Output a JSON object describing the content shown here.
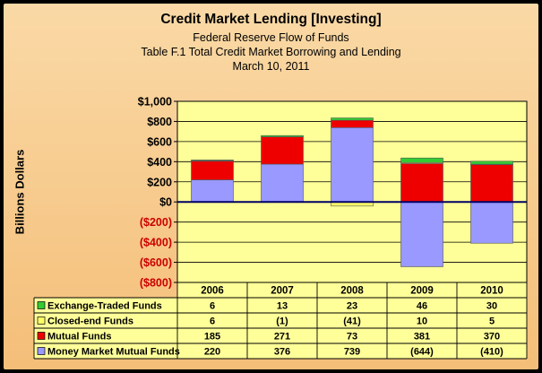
{
  "header": {
    "title": "Credit Market Lending [Investing]",
    "subtitle_1": "Federal Reserve Flow of Funds",
    "subtitle_2": "Table F.1 Total Credit Market Borrowing and Lending",
    "subtitle_3": "March 10, 2011"
  },
  "colors": {
    "plot_background": "#ffff99",
    "exchange_traded": "#33cc33",
    "closed_end": "#ffff66",
    "mutual_funds": "#ee0000",
    "money_market": "#9999ff",
    "negative_label": "#cc0000"
  },
  "chart_data": {
    "type": "bar",
    "stacked": true,
    "title": "Credit Market Lending [Investing]",
    "subtitle": "Federal Reserve Flow of Funds / Table F.1 Total Credit Market Borrowing and Lending / March 10, 2011",
    "xlabel": "",
    "ylabel": "Billions Dollars",
    "ylim": [
      -800,
      1000
    ],
    "y_ticks": [
      1000,
      800,
      600,
      400,
      200,
      0,
      -200,
      -400,
      -600,
      -800
    ],
    "y_tick_labels": [
      "$1,000",
      "$800",
      "$600",
      "$400",
      "$200",
      "$0",
      "($200)",
      "($400)",
      "($600)",
      "($800)"
    ],
    "grid": true,
    "legend": "data table below chart",
    "categories": [
      "2006",
      "2007",
      "2008",
      "2009",
      "2010"
    ],
    "series": [
      {
        "name": "Exchange-Traded Funds",
        "color": "#33cc33",
        "values": [
          6,
          13,
          23,
          46,
          30
        ],
        "labels": [
          "6",
          "13",
          "23",
          "46",
          "30"
        ]
      },
      {
        "name": "Closed-end Funds",
        "color": "#ffff66",
        "values": [
          6,
          -1,
          -41,
          10,
          5
        ],
        "labels": [
          "6",
          "(1)",
          "(41)",
          "10",
          "5"
        ]
      },
      {
        "name": "Mutual Funds",
        "color": "#ee0000",
        "values": [
          185,
          271,
          73,
          381,
          370
        ],
        "labels": [
          "185",
          "271",
          "73",
          "381",
          "370"
        ]
      },
      {
        "name": "Money Market Mutual Funds",
        "color": "#9999ff",
        "values": [
          220,
          376,
          739,
          -644,
          -410
        ],
        "labels": [
          "220",
          "376",
          "739",
          "(644)",
          "(410)"
        ]
      }
    ]
  }
}
